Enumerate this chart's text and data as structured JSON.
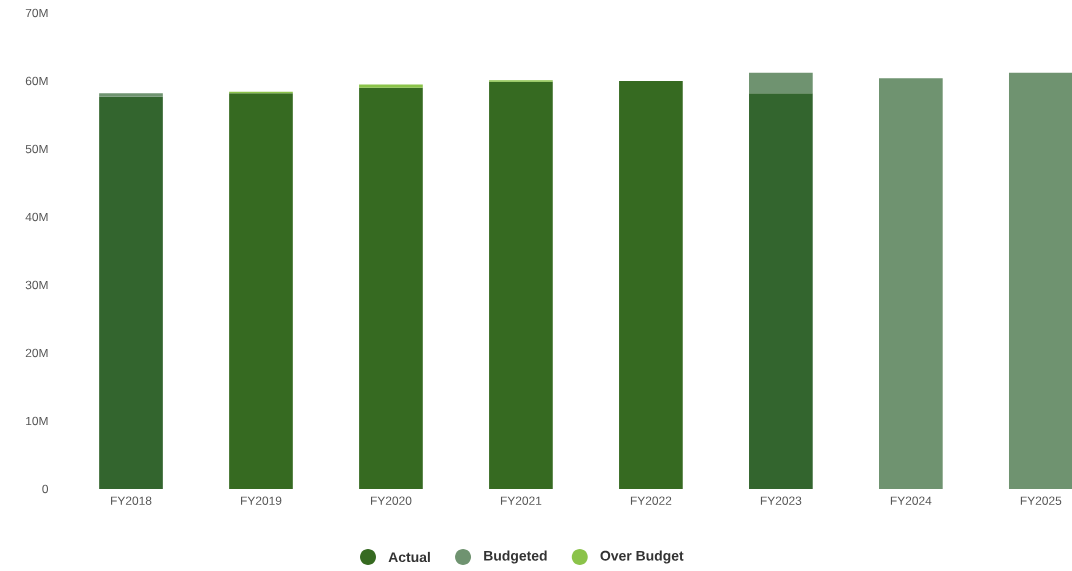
{
  "chart_data": {
    "type": "bar",
    "stacked": true,
    "legend": "bottom",
    "categories": [
      "FY2018",
      "FY2019",
      "FY2020",
      "FY2021",
      "FY2022",
      "FY2023",
      "FY2024",
      "FY2025"
    ],
    "series": [
      {
        "name": "Actual",
        "color": "#366a21",
        "colors": [
          "#33652e",
          "#366a21",
          "#366a21",
          "#366a21",
          "#366a21",
          "#33652e",
          "#366a21",
          "#366a21"
        ],
        "values": [
          57.7,
          58.2,
          59.0,
          59.9,
          60.0,
          58.2,
          null,
          null
        ]
      },
      {
        "name": "Budgeted",
        "color": "#6f9370",
        "values": [
          0.5,
          null,
          null,
          null,
          null,
          3.0,
          60.4,
          61.2
        ]
      },
      {
        "name": "Over Budget",
        "color": "#8bc34a",
        "values": [
          null,
          0.2,
          0.5,
          0.2,
          null,
          null,
          null,
          null
        ]
      }
    ],
    "ylim": [
      0,
      70
    ],
    "yticks": [
      {
        "value": 0,
        "label": "0"
      },
      {
        "value": 10,
        "label": "10M"
      },
      {
        "value": 20,
        "label": "20M"
      },
      {
        "value": 30,
        "label": "30M"
      },
      {
        "value": 40,
        "label": "40M"
      },
      {
        "value": 50,
        "label": "50M"
      },
      {
        "value": 60,
        "label": "60M"
      },
      {
        "value": 70,
        "label": "70M"
      }
    ]
  }
}
